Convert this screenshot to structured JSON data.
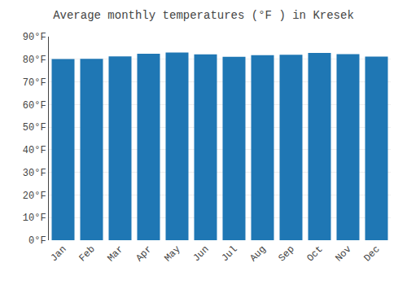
{
  "chart_data": {
    "type": "bar",
    "title": "Average monthly temperatures (°F ) in Kresek",
    "categories": [
      "Jan",
      "Feb",
      "Mar",
      "Apr",
      "May",
      "Jun",
      "Jul",
      "Aug",
      "Sep",
      "Oct",
      "Nov",
      "Dec"
    ],
    "values": [
      80.1,
      80.2,
      81.3,
      82.4,
      83.0,
      82.2,
      81.1,
      81.8,
      82.0,
      82.8,
      82.3,
      81.2
    ],
    "ylim": [
      0,
      90
    ],
    "yticks": [
      {
        "value": 0,
        "label": "0°F"
      },
      {
        "value": 10,
        "label": "10°F"
      },
      {
        "value": 20,
        "label": "20°F"
      },
      {
        "value": 30,
        "label": "30°F"
      },
      {
        "value": 40,
        "label": "40°F"
      },
      {
        "value": 50,
        "label": "50°F"
      },
      {
        "value": 60,
        "label": "60°F"
      },
      {
        "value": 70,
        "label": "70°F"
      },
      {
        "value": 80,
        "label": "80°F"
      },
      {
        "value": 90,
        "label": "90°F"
      }
    ],
    "grid": true
  }
}
